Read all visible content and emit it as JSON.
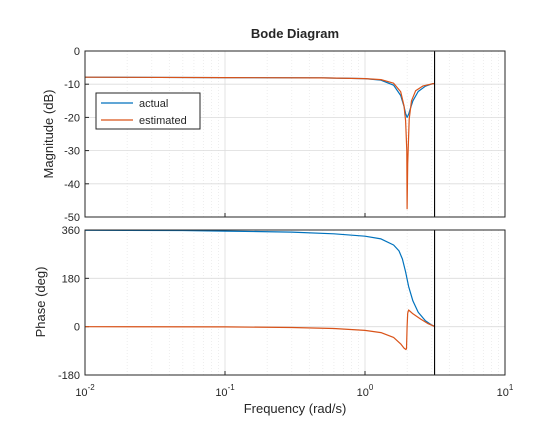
{
  "chart_data": {
    "type": "line",
    "title": "Bode Diagram",
    "xlabel": "Frequency  (rad/s)",
    "x_scale": "log",
    "xlim": [
      0.01,
      10
    ],
    "x_ticks": [
      {
        "value": 0.01,
        "base": "10",
        "exp": "-2"
      },
      {
        "value": 0.1,
        "base": "10",
        "exp": "-1"
      },
      {
        "value": 1,
        "base": "10",
        "exp": "0"
      },
      {
        "value": 10,
        "base": "10",
        "exp": "1"
      }
    ],
    "nyquist_marker_x": 3.14,
    "grid": true,
    "legend": {
      "location": "upper-left",
      "entries": [
        "actual",
        "estimated"
      ]
    },
    "colors": {
      "actual": "#0072BD",
      "estimated": "#D95319"
    },
    "panels": [
      {
        "name": "magnitude",
        "ylabel": "Magnitude (dB)",
        "ylim": [
          -50,
          0
        ],
        "yticks": [
          "0",
          "-10",
          "-20",
          "-30",
          "-40",
          "-50"
        ],
        "ytick_values": [
          0,
          -10,
          -20,
          -30,
          -40,
          -50
        ],
        "series": [
          {
            "name": "actual",
            "x": [
              0.01,
              0.1,
              0.5,
              1.0,
              1.3,
              1.6,
              1.8,
              1.9,
              1.95,
              2.0,
              2.05,
              2.1,
              2.2,
              2.4,
              2.7,
              3.0,
              3.14
            ],
            "y": [
              -7.9,
              -8.0,
              -8.1,
              -8.3,
              -8.8,
              -10.3,
              -13.4,
              -16.7,
              -18.8,
              -20.0,
              -19.1,
              -17.6,
              -15.0,
              -12.2,
              -10.6,
              -9.9,
              -9.8
            ]
          },
          {
            "name": "estimated",
            "x": [
              0.01,
              0.1,
              0.5,
              1.0,
              1.3,
              1.6,
              1.8,
              1.9,
              1.95,
              1.99,
              2.0,
              2.02,
              2.07,
              2.15,
              2.3,
              2.6,
              3.0,
              3.14
            ],
            "y": [
              -7.9,
              -8.0,
              -8.1,
              -8.3,
              -8.6,
              -9.7,
              -12.3,
              -16.5,
              -21.0,
              -30.0,
              -47.5,
              -34.0,
              -20.5,
              -15.0,
              -12.0,
              -10.5,
              -9.9,
              -9.8
            ]
          }
        ]
      },
      {
        "name": "phase",
        "ylabel": "Phase (deg)",
        "ylim": [
          -180,
          360
        ],
        "yticks": [
          "360",
          "180",
          "0",
          "-180"
        ],
        "ytick_values": [
          360,
          180,
          0,
          -180
        ],
        "series": [
          {
            "name": "actual",
            "x": [
              0.01,
              0.05,
              0.1,
              0.3,
              0.6,
              1.0,
              1.3,
              1.6,
              1.75,
              1.85,
              1.95,
              2.05,
              2.2,
              2.4,
              2.7,
              3.0,
              3.14
            ],
            "y": [
              359,
              358,
              356,
              352,
              346,
              337,
              327,
              304,
              282,
              252,
              204,
              150,
              96,
              54,
              22,
              6,
              1
            ]
          },
          {
            "name": "estimated",
            "x": [
              0.01,
              0.1,
              0.3,
              0.6,
              1.0,
              1.3,
              1.6,
              1.8,
              1.9,
              1.96,
              1.98,
              2.0,
              2.02,
              2.05,
              2.2,
              2.5,
              2.8,
              3.14
            ],
            "y": [
              0,
              -1,
              -3,
              -7,
              -14,
              -22,
              -40,
              -64,
              -80,
              -85,
              -82,
              0,
              50,
              62,
              48,
              28,
              12,
              1
            ]
          }
        ]
      }
    ]
  }
}
